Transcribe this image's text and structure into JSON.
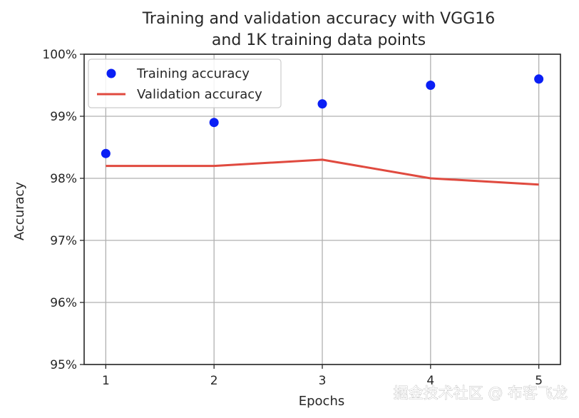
{
  "chart_data": {
    "type": "line",
    "title_lines": [
      "Training and validation accuracy with VGG16",
      "and 1K training data points"
    ],
    "xlabel": "Epochs",
    "ylabel": "Accuracy",
    "x": [
      1,
      2,
      3,
      4,
      5
    ],
    "xticks": [
      "1",
      "2",
      "3",
      "4",
      "5"
    ],
    "ylim": [
      0.95,
      1.0
    ],
    "yticks": [
      {
        "value": 0.95,
        "label": "95%"
      },
      {
        "value": 0.96,
        "label": "96%"
      },
      {
        "value": 0.97,
        "label": "97%"
      },
      {
        "value": 0.98,
        "label": "98%"
      },
      {
        "value": 0.99,
        "label": "99%"
      },
      {
        "value": 1.0,
        "label": "100%"
      }
    ],
    "grid": true,
    "legend_position": "upper-left",
    "series": [
      {
        "name": "Training accuracy",
        "style": "markers",
        "color": "#0a1ff5",
        "values": [
          0.984,
          0.989,
          0.992,
          0.995,
          0.996
        ]
      },
      {
        "name": "Validation accuracy",
        "style": "line",
        "color": "#e04a3f",
        "values": [
          0.982,
          0.982,
          0.983,
          0.98,
          0.979
        ]
      }
    ]
  },
  "watermark": "掘金技术社区 @ 布客飞龙"
}
